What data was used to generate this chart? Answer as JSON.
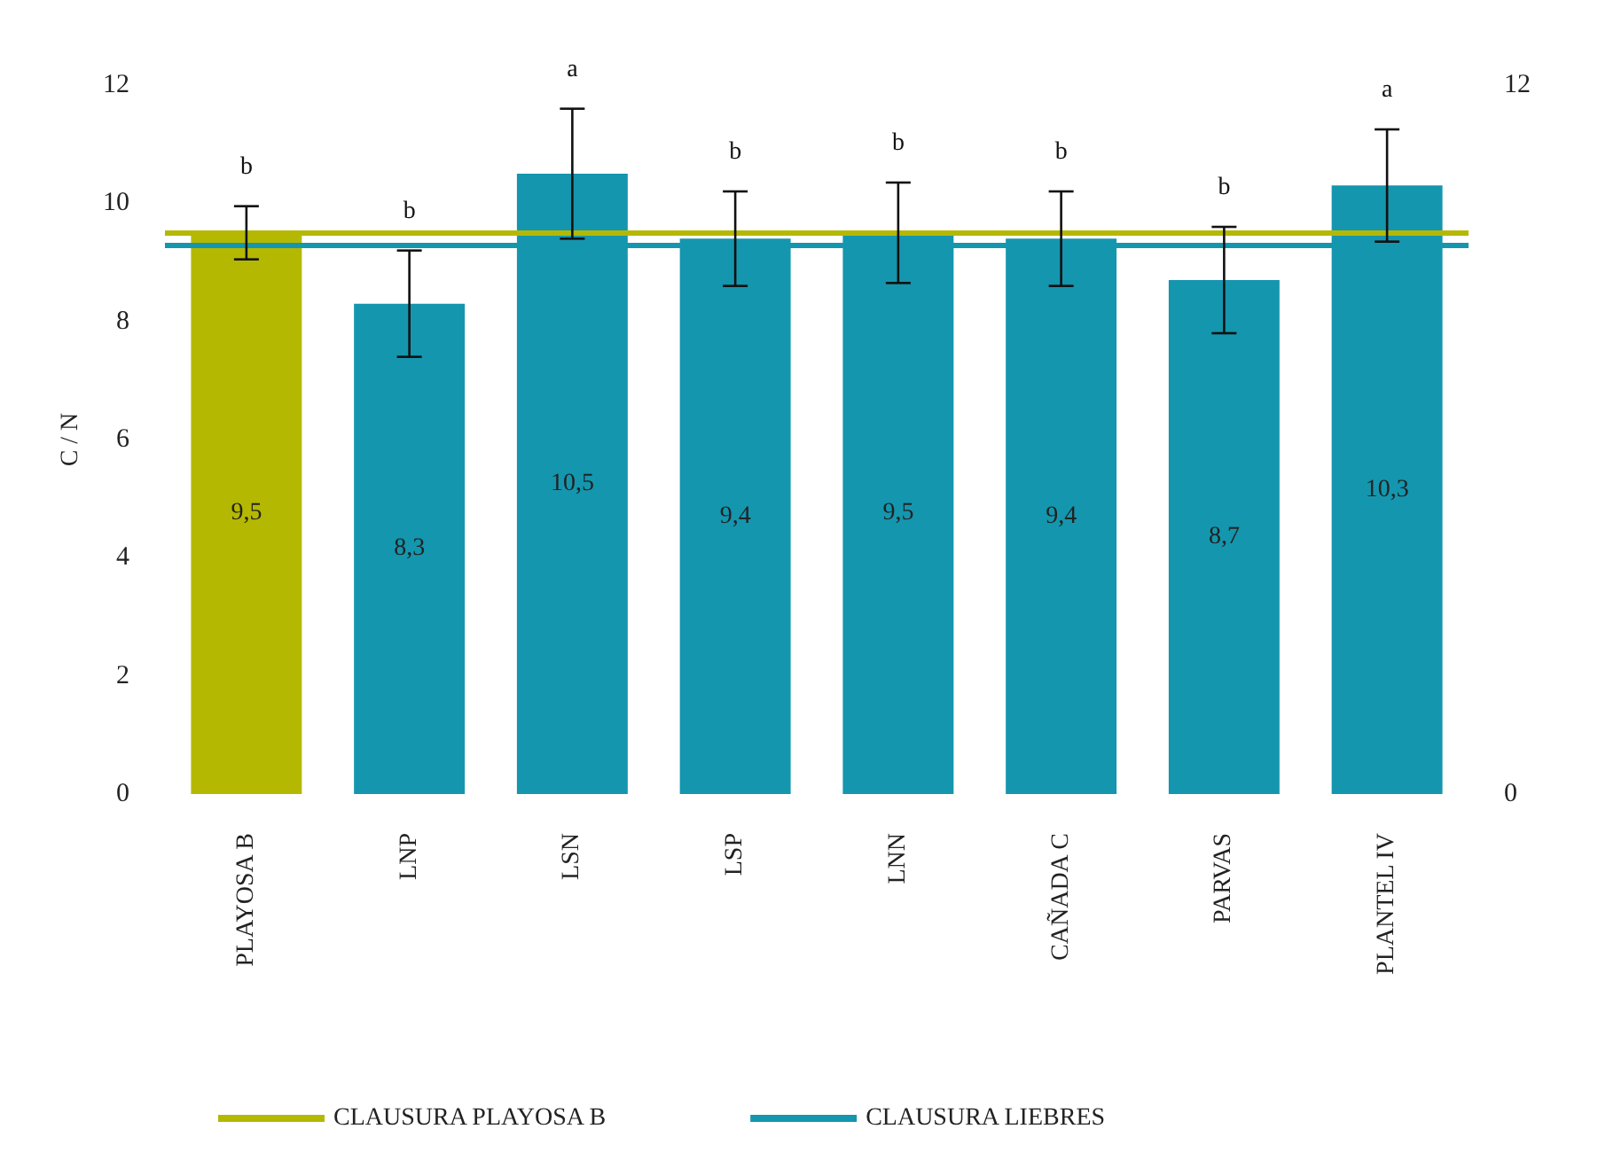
{
  "chart_data": {
    "type": "bar",
    "ylabel": "C / N",
    "categories": [
      "PLAYOSA B",
      "LNP",
      "LSN",
      "LSP",
      "LNN",
      "CAÑADA C",
      "PARVAS",
      "PLANTEL IV"
    ],
    "values": [
      9.5,
      8.3,
      10.5,
      9.4,
      9.5,
      9.4,
      8.7,
      10.3
    ],
    "colors": [
      "#b5b800",
      "#1496ae",
      "#1496ae",
      "#1496ae",
      "#1496ae",
      "#1496ae",
      "#1496ae",
      "#1496ae"
    ],
    "errors": [
      0.45,
      0.9,
      1.1,
      0.8,
      0.85,
      0.8,
      0.9,
      0.95
    ],
    "value_labels": [
      "9,5",
      "8,3",
      "10,5",
      "9,4",
      "9,5",
      "9,4",
      "8,7",
      "10,3"
    ],
    "annotations": [
      {
        "text": "b",
        "x": "PLAYOSA B",
        "y": 9.95
      },
      {
        "text": "b",
        "x": "LNP",
        "y": 9.2
      },
      {
        "text": "a",
        "x": "LSN",
        "y": 11.6
      },
      {
        "text": "b",
        "x": "LSP",
        "y": 10.2
      },
      {
        "text": "b",
        "x": "LNN",
        "y": 10.35
      },
      {
        "text": "b",
        "x": "CAÑADA C",
        "y": 10.2
      },
      {
        "text": "b",
        "x": "PARVAS",
        "y": 9.6
      },
      {
        "text": "a",
        "x": "PLANTEL IV",
        "y": 11.25
      }
    ],
    "ref_lines": [
      {
        "axis": "y",
        "value": 9.5,
        "label": "CLAUSURA PLAYOSA B",
        "color": "#b5b800"
      },
      {
        "axis": "y",
        "value": 9.3,
        "label": "CLAUSURA LIEBRES",
        "color": "#1496ae"
      }
    ],
    "ylim": [
      0,
      12
    ],
    "yticks": [
      0,
      2,
      4,
      6,
      8,
      10,
      12
    ],
    "y2lim": [
      0,
      12
    ],
    "y2ticks": [
      0,
      12
    ],
    "grid": false,
    "legend": "bottom"
  }
}
